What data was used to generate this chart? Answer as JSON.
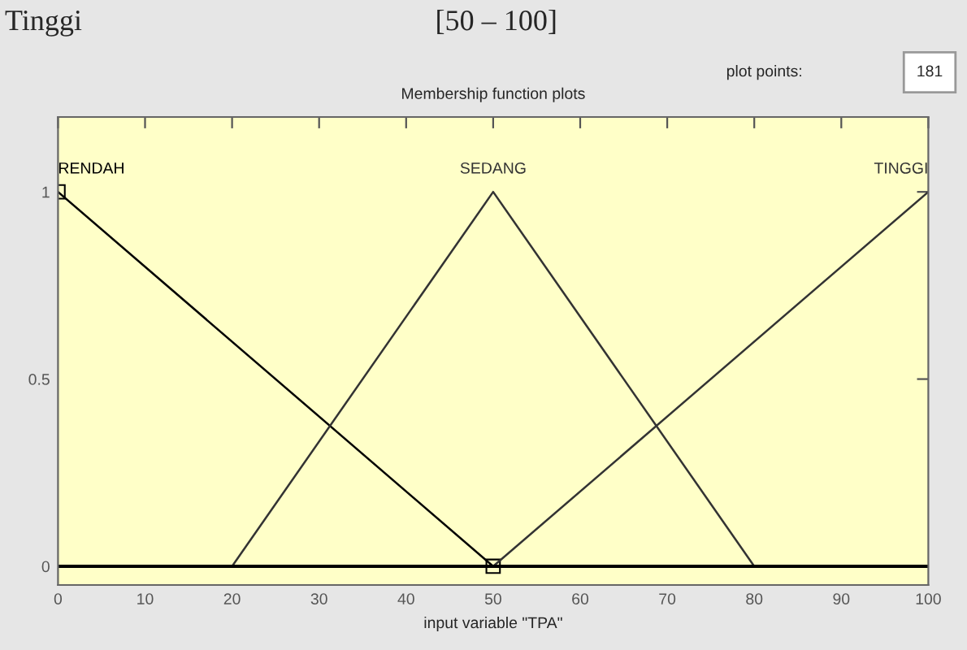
{
  "chart_data": {
    "type": "line",
    "title": "Membership function plots",
    "xlabel": "input variable \"TPA\"",
    "series": [
      {
        "name": "RENDAH",
        "color": "#000000",
        "x": [
          0,
          50
        ],
        "values": [
          1,
          0
        ],
        "marker": "square"
      },
      {
        "name": "SEDANG",
        "color": "#333333",
        "x": [
          20,
          50,
          80
        ],
        "values": [
          0,
          1,
          0
        ]
      },
      {
        "name": "TINGGI",
        "color": "#333333",
        "x": [
          50,
          100
        ],
        "values": [
          0,
          1
        ]
      }
    ],
    "xlim": [
      0,
      100
    ],
    "xticks": [
      0,
      10,
      20,
      30,
      40,
      50,
      60,
      70,
      80,
      90,
      100
    ],
    "ylim": [
      -0.05,
      1.2
    ],
    "yticks": [
      0,
      0.5,
      1
    ],
    "ref_lines": [
      {
        "axis": "y",
        "value": 0,
        "color": "#000000"
      }
    ],
    "grid": false,
    "legend": false,
    "annotations": [
      "Tinggi",
      "[50 – 100]",
      "plot points:",
      "181"
    ]
  }
}
